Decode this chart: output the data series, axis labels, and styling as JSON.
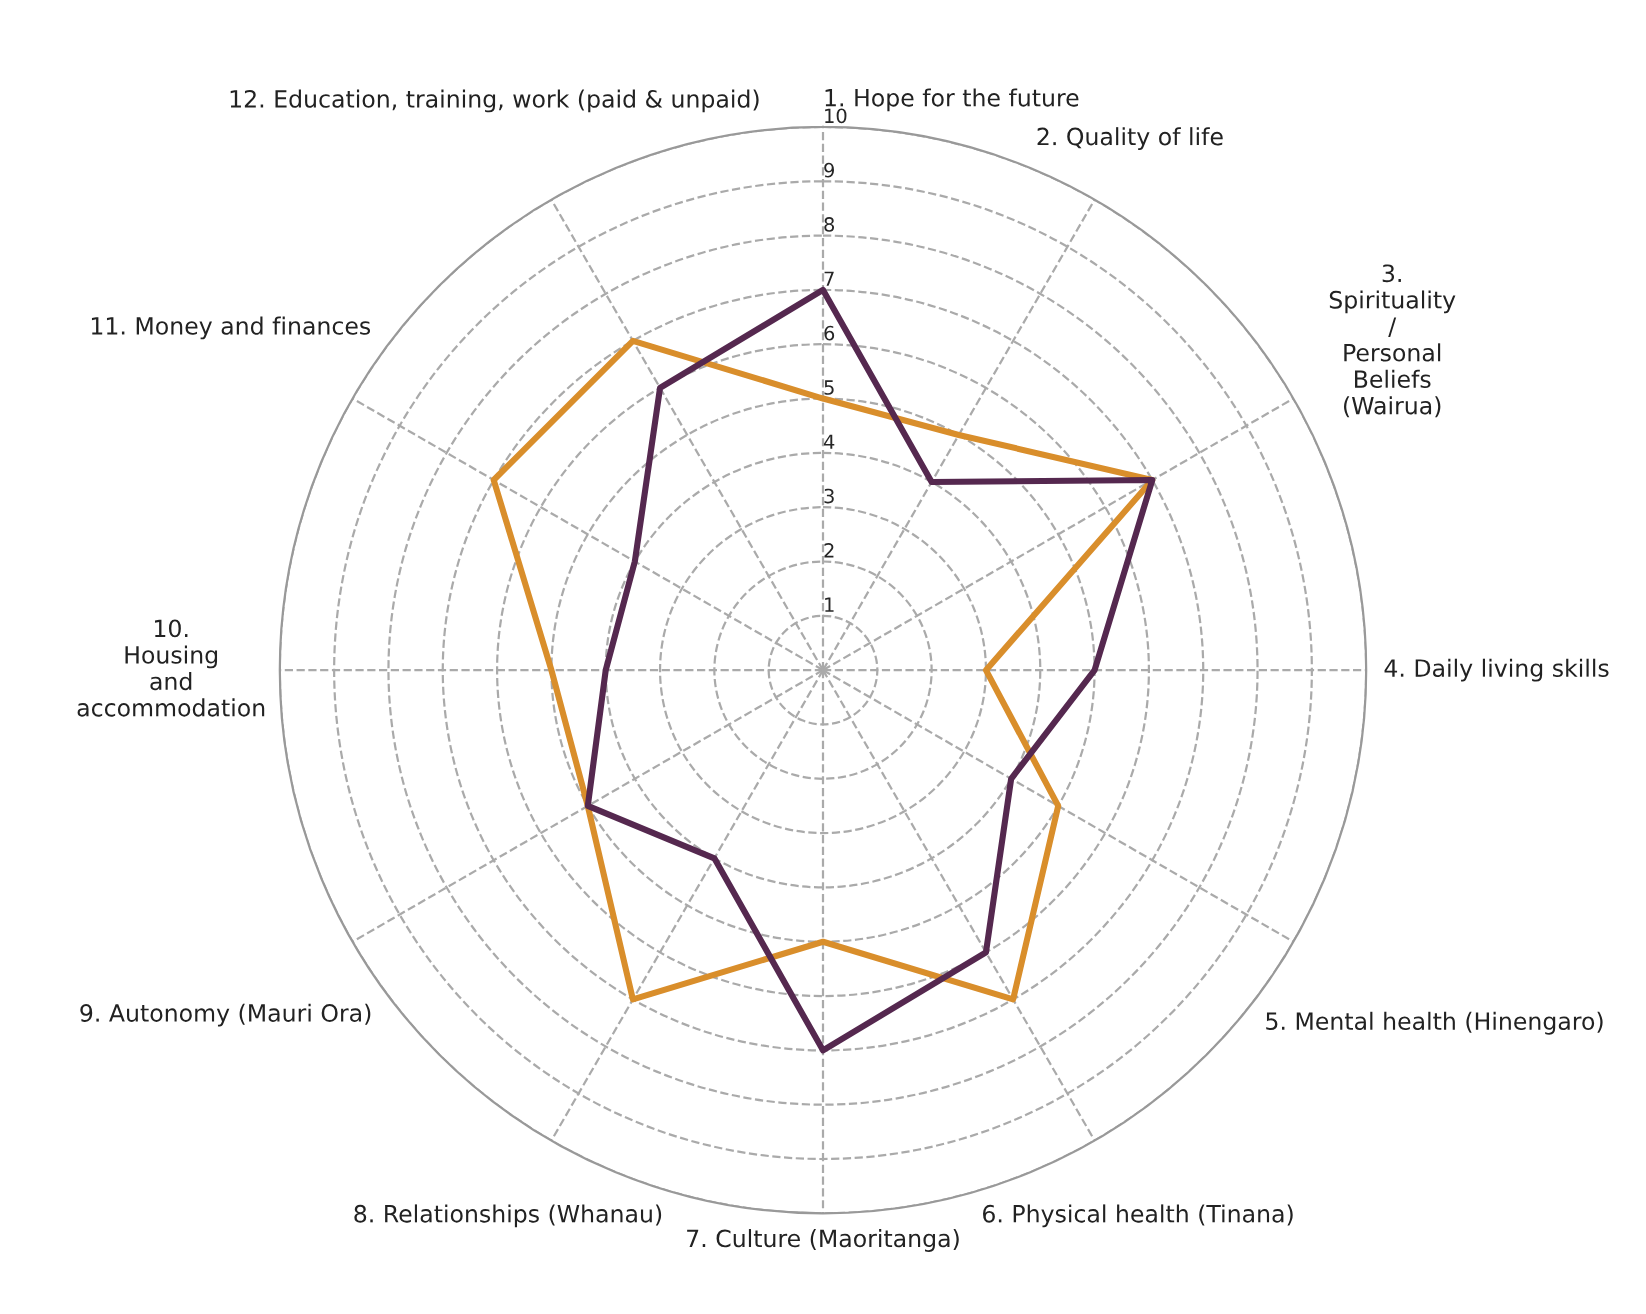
{
  "chart_data": {
    "type": "radar",
    "categories": [
      "1. Hope for the future",
      "2. Quality of life",
      "3.\nSpirituality\n/\nPersonal\nBeliefs\n(Wairua)",
      "4. Daily living skills",
      "5. Mental health (Hinengaro)",
      "6. Physical health (Tinana)",
      "7. Culture (Maoritanga)",
      "8. Relationships (Whanau)",
      "9. Autonomy (Mauri Ora)",
      "10.\nHousing\nand\naccommodation",
      "11. Money and finances",
      "12. Education, training, work (paid & unpaid)"
    ],
    "series": [
      {
        "color": "#d98e2b",
        "values": [
          5,
          5,
          7,
          3,
          5,
          7,
          5,
          7,
          5,
          5,
          7,
          7
        ]
      },
      {
        "color": "#55284f",
        "values": [
          7,
          4,
          7,
          5,
          4,
          6,
          7,
          4,
          5,
          4,
          4,
          6
        ]
      }
    ],
    "ylim": [
      0,
      10
    ],
    "yticks": [
      1,
      2,
      3,
      4,
      5,
      6,
      7,
      8,
      9,
      10
    ],
    "grid": true,
    "line_style": "solid",
    "marker": "none"
  }
}
